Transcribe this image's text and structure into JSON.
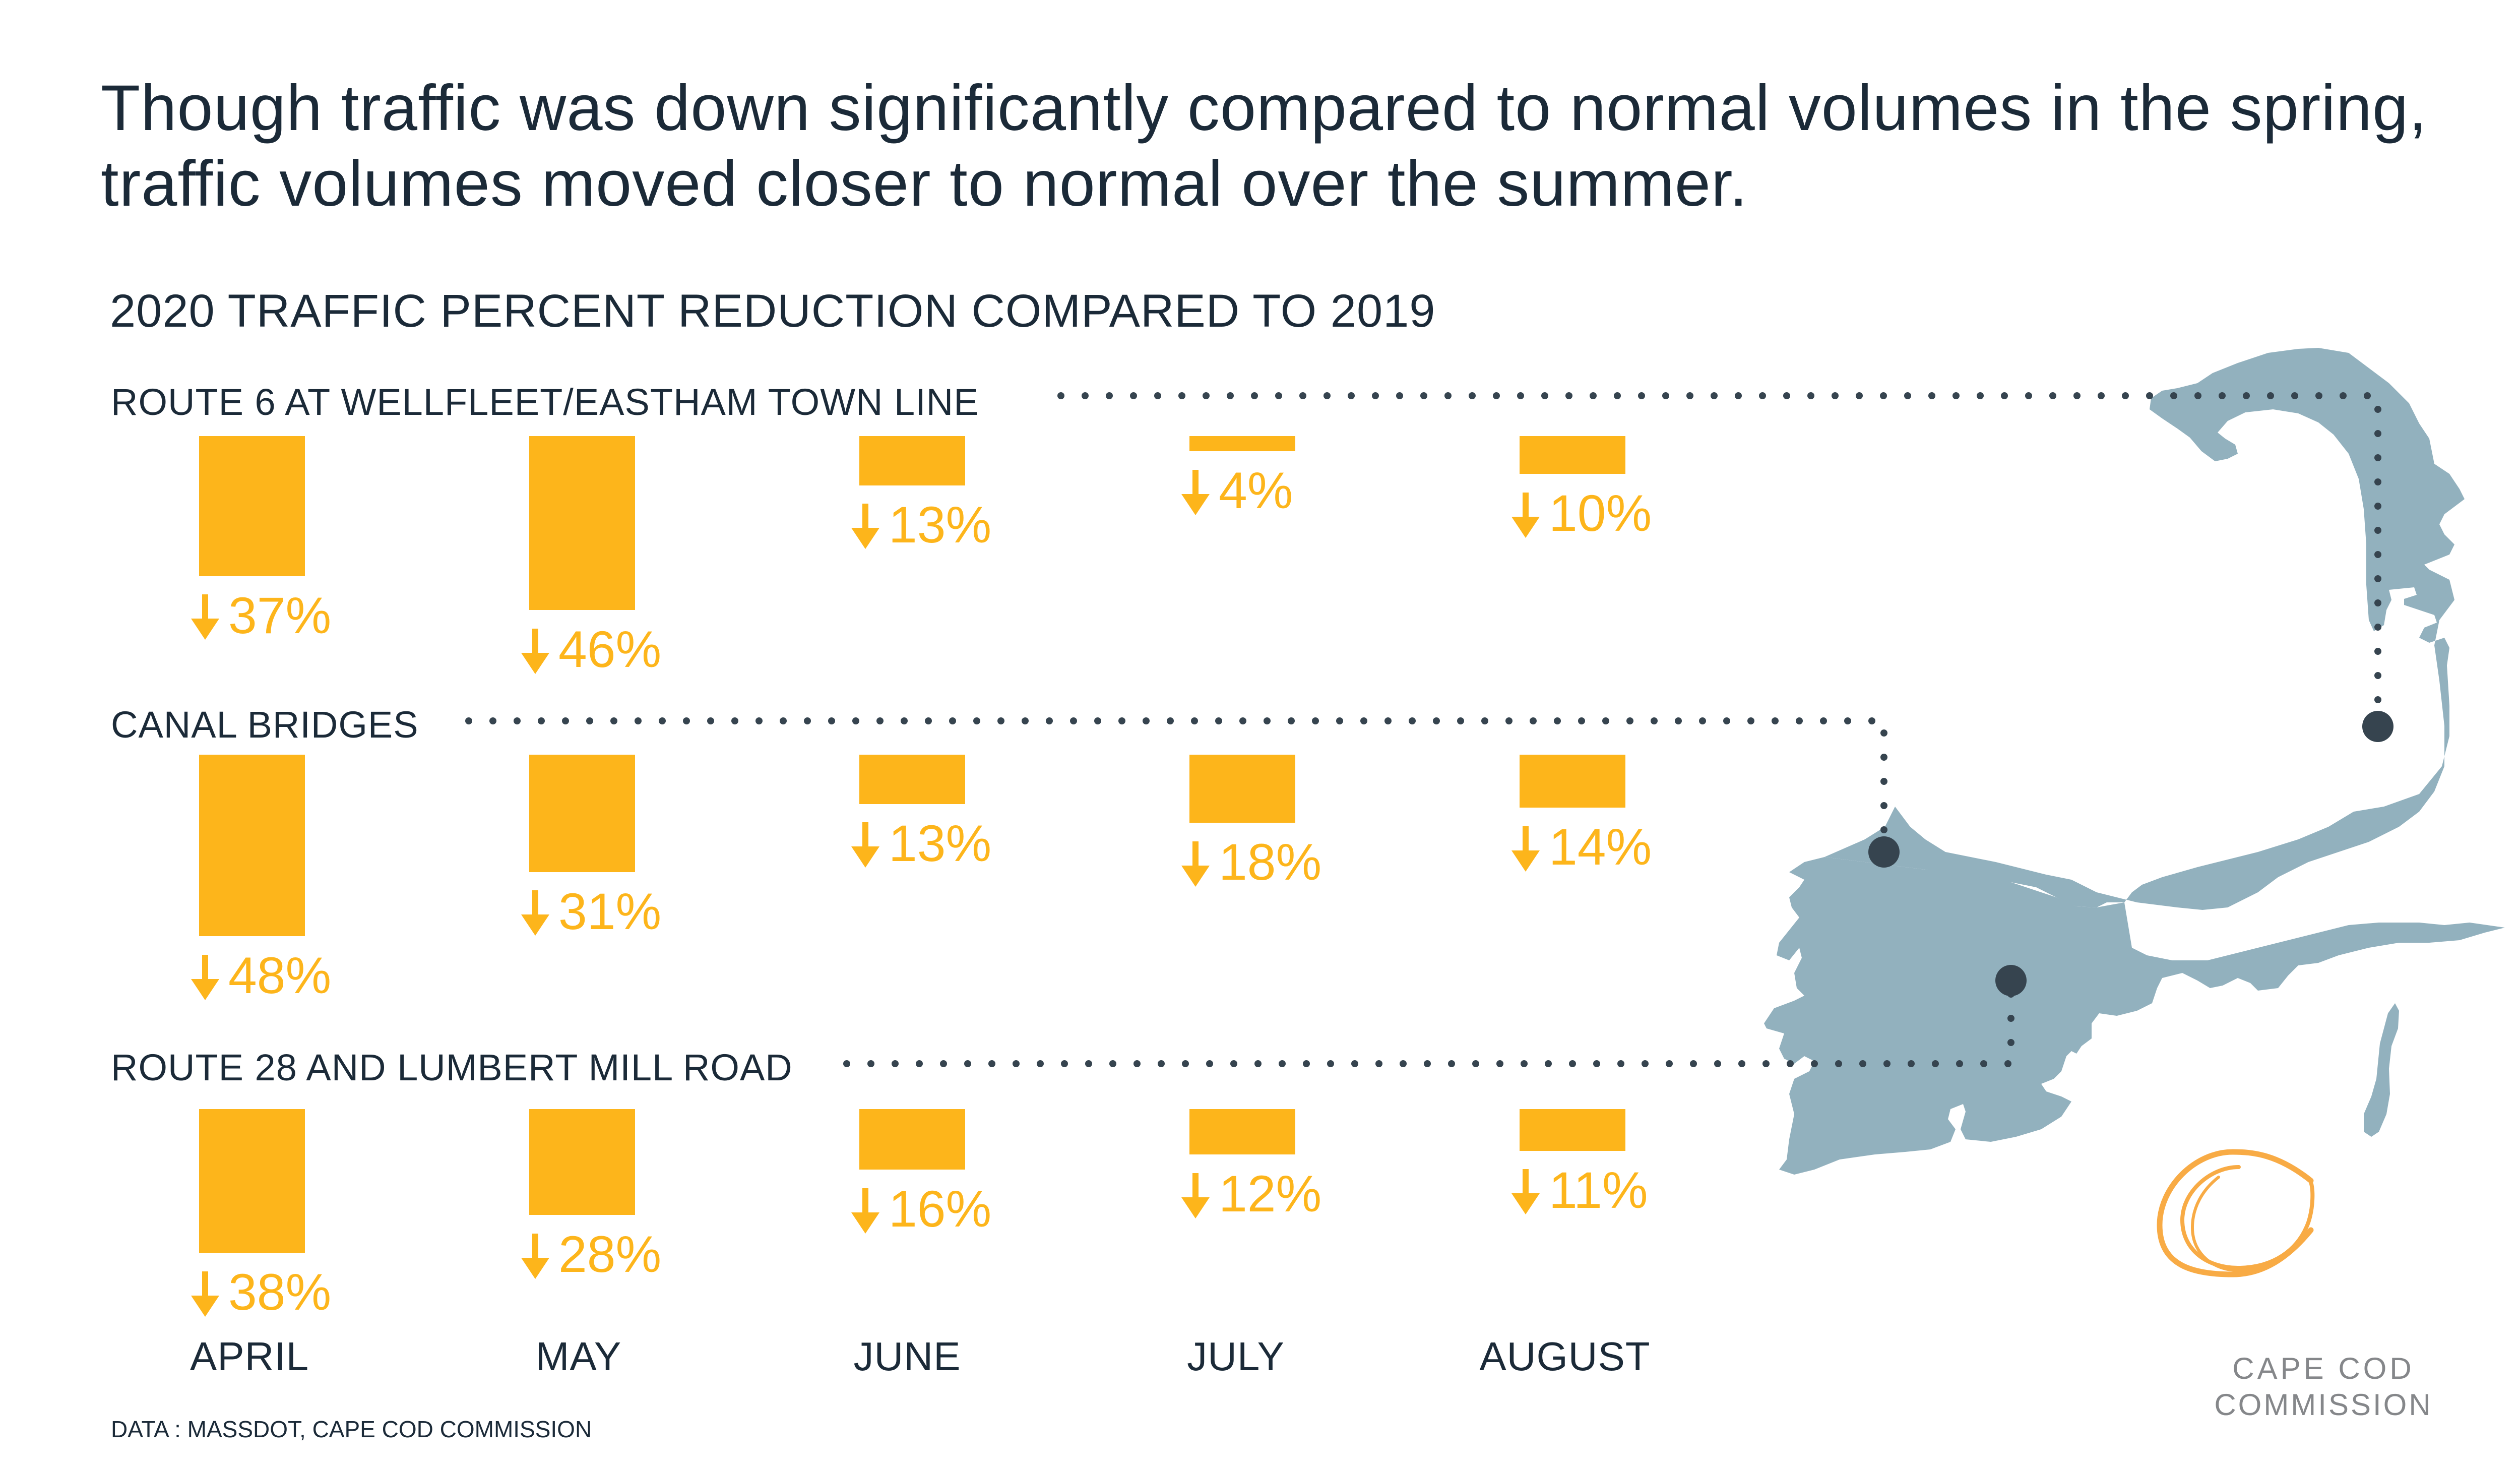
{
  "headline": "Though traffic was down significantly compared to normal volumes in the spring, traffic volumes moved closer to normal over the summer.",
  "colors": {
    "bar": "#fdb51b",
    "text": "#1b2a38",
    "map": "#92b1be",
    "marker": "#36444f",
    "logo": "#f8ab45",
    "logo_text": "#85878a"
  },
  "chart_data": {
    "type": "bar",
    "title": "2020 TRAFFIC PERCENT REDUCTION COMPARED TO 2019",
    "categories": [
      "APRIL",
      "MAY",
      "JUNE",
      "JULY",
      "AUGUST"
    ],
    "unit": "% reduction",
    "direction": "down",
    "series": [
      {
        "name": "ROUTE 6 AT WELLFLEET/EASTHAM TOWN LINE",
        "values": [
          37,
          46,
          13,
          4,
          10
        ],
        "labels": [
          "37%",
          "46%",
          "13%",
          "4%",
          "10%"
        ]
      },
      {
        "name": "CANAL BRIDGES",
        "values": [
          48,
          31,
          13,
          18,
          14
        ],
        "labels": [
          "48%",
          "31%",
          "13%",
          "18%",
          "14%"
        ]
      },
      {
        "name": "ROUTE 28 AND LUMBERT MILL ROAD",
        "values": [
          38,
          28,
          16,
          12,
          11
        ],
        "labels": [
          "38%",
          "28%",
          "16%",
          "12%",
          "11%"
        ]
      }
    ]
  },
  "source": "DATA : MASSDOT, CAPE COD COMMISSION",
  "logo": {
    "line1": "CAPE COD",
    "line2": "COMMISSION"
  },
  "icons": {
    "arrow": "arrow-down-icon",
    "map": "cape-cod-map",
    "logo": "cape-cod-commission-logo"
  }
}
